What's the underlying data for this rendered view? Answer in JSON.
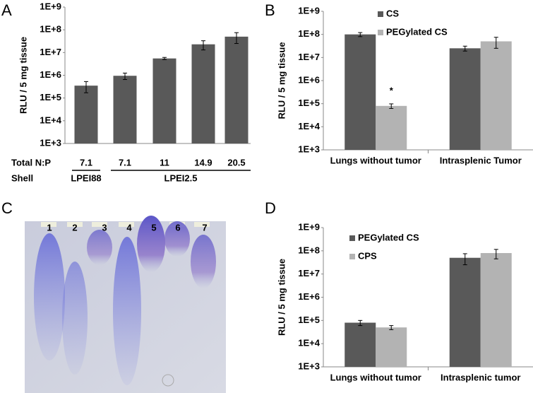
{
  "chart_data": [
    {
      "type": "bar",
      "panel_label": "A",
      "y_label": "RLU / 5 mg tissue",
      "log_scale": true,
      "ylim": [
        1000,
        1000000000
      ],
      "yticks": [
        {
          "value": 1000,
          "label": "1E+3"
        },
        {
          "value": 10000,
          "label": "1E+4"
        },
        {
          "value": 100000,
          "label": "1E+5"
        },
        {
          "value": 1000000,
          "label": "1E+6"
        },
        {
          "value": 10000000,
          "label": "1E+7"
        },
        {
          "value": 100000000,
          "label": "1E+8"
        },
        {
          "value": 1000000000,
          "label": "1E+9"
        }
      ],
      "x_label": "Total N:P",
      "categories": [
        "7.1",
        "7.1",
        "11",
        "14.9",
        "20.5"
      ],
      "shell_label": "Shell",
      "shell": [
        "LPEI88",
        "LPEI2.5",
        "LPEI2.5",
        "LPEI2.5",
        "LPEI2.5"
      ],
      "values": [
        350000,
        950000,
        5500000,
        23000000,
        50000000
      ],
      "errors": [
        180000,
        300000,
        600000,
        10000000,
        25000000
      ],
      "color": "#595959"
    },
    {
      "type": "bar",
      "panel_label": "B",
      "y_label": "RLU / 5 mg tissue",
      "log_scale": true,
      "ylim": [
        1000,
        1000000000
      ],
      "yticks": [
        {
          "value": 1000,
          "label": "1E+3"
        },
        {
          "value": 10000,
          "label": "1E+4"
        },
        {
          "value": 100000,
          "label": "1E+5"
        },
        {
          "value": 1000000,
          "label": "1E+6"
        },
        {
          "value": 10000000,
          "label": "1E+7"
        },
        {
          "value": 100000000,
          "label": "1E+8"
        },
        {
          "value": 1000000000,
          "label": "1E+9"
        }
      ],
      "categories": [
        "Lungs without tumor",
        "Intrasplenic Tumor"
      ],
      "series": [
        {
          "name": "CS",
          "color": "#595959",
          "values": [
            100000000,
            25000000
          ],
          "errors": [
            20000000,
            6000000
          ]
        },
        {
          "name": "PEGylated CS",
          "color": "#b3b3b3",
          "values": [
            80000,
            50000000
          ],
          "errors": [
            18000,
            25000000
          ]
        }
      ],
      "annotation": "*"
    },
    {
      "type": "bar",
      "panel_label": "D",
      "y_label": "RLU / 5 mg tissue",
      "log_scale": true,
      "ylim": [
        1000,
        1000000000
      ],
      "yticks": [
        {
          "value": 1000,
          "label": "1E+3"
        },
        {
          "value": 10000,
          "label": "1E+4"
        },
        {
          "value": 100000,
          "label": "1E+5"
        },
        {
          "value": 1000000,
          "label": "1E+6"
        },
        {
          "value": 10000000,
          "label": "1E+7"
        },
        {
          "value": 100000000,
          "label": "1E+8"
        },
        {
          "value": 1000000000,
          "label": "1E+9"
        }
      ],
      "categories": [
        "Lungs without tumor",
        "Intrasplenic tumor"
      ],
      "series": [
        {
          "name": "PEGylated CS",
          "color": "#595959",
          "values": [
            80000,
            50000000
          ],
          "errors": [
            20000,
            25000000
          ]
        },
        {
          "name": "CPS",
          "color": "#b3b3b3",
          "values": [
            50000,
            80000000
          ],
          "errors": [
            10000,
            35000000
          ]
        }
      ]
    }
  ],
  "gel_panel": {
    "panel_label": "C",
    "lanes": [
      "1",
      "2",
      "3",
      "4",
      "5",
      "6",
      "7"
    ]
  }
}
